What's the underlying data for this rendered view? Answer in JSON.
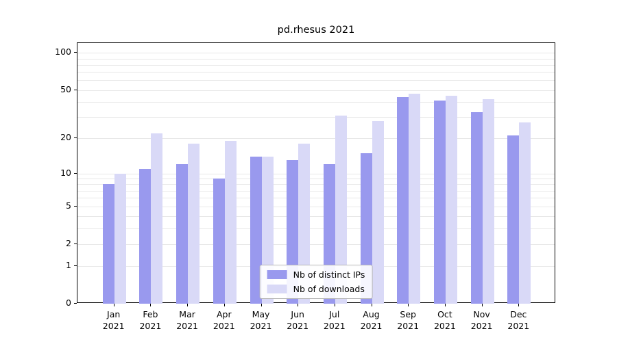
{
  "chart_data": {
    "type": "bar",
    "title": "pd.rhesus 2021",
    "xlabel": "",
    "ylabel": "",
    "y_scale": "log10(value+1)",
    "ylim": [
      0,
      120
    ],
    "yticks": [
      100,
      50,
      20,
      10,
      5,
      2,
      1,
      0
    ],
    "grid_values": [
      1,
      2,
      3,
      4,
      5,
      6,
      7,
      8,
      9,
      10,
      20,
      30,
      40,
      50,
      60,
      70,
      80,
      90,
      100
    ],
    "grid": "horizontal, light gray, behind bars",
    "categories": [
      "Jan",
      "Feb",
      "Mar",
      "Apr",
      "May",
      "Jun",
      "Jul",
      "Aug",
      "Sep",
      "Oct",
      "Nov",
      "Dec"
    ],
    "year": "2021",
    "series": [
      {
        "key": "ips",
        "name": "Nb of distinct IPs",
        "color": "#9999ee",
        "values": [
          8,
          11,
          12,
          9,
          14,
          13,
          12,
          15,
          44,
          41,
          33,
          21
        ]
      },
      {
        "key": "downloads",
        "name": "Nb of downloads",
        "color": "#d9d9f7",
        "values": [
          10,
          22,
          18,
          19,
          14,
          18,
          31,
          28,
          47,
          45,
          42,
          27
        ]
      }
    ],
    "legend_position": "lower center, inside plot"
  }
}
